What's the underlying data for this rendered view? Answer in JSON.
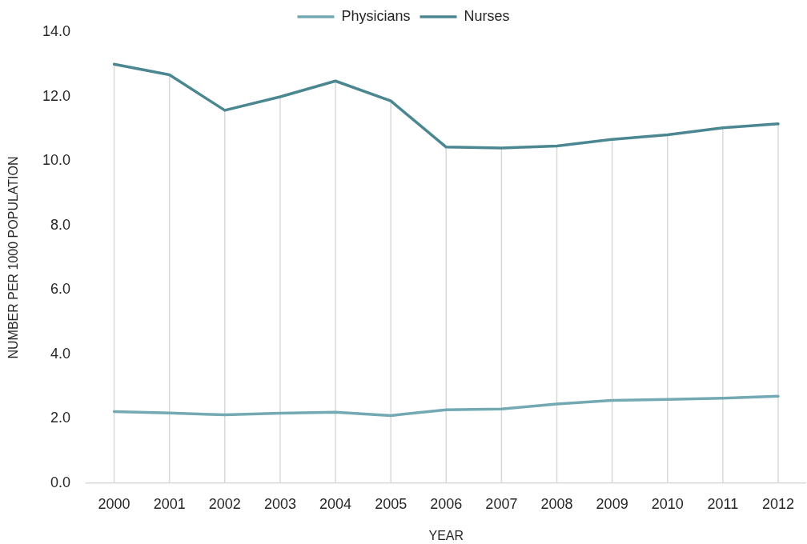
{
  "chart_data": {
    "type": "line",
    "xlabel": "YEAR",
    "ylabel": "NUMBER PER 1000 POPULATION",
    "categories": [
      "2000",
      "2001",
      "2002",
      "2003",
      "2004",
      "2005",
      "2006",
      "2007",
      "2008",
      "2009",
      "2010",
      "2011",
      "2012"
    ],
    "series": [
      {
        "name": "Physicians",
        "color": "#72a9b3",
        "values": [
          2.22,
          2.18,
          2.12,
          2.17,
          2.2,
          2.1,
          2.28,
          2.3,
          2.46,
          2.57,
          2.6,
          2.64,
          2.7
        ]
      },
      {
        "name": "Nurses",
        "color": "#4b8791",
        "values": [
          13.0,
          12.67,
          11.57,
          11.99,
          12.48,
          11.86,
          10.43,
          10.4,
          10.46,
          10.67,
          10.81,
          11.03,
          11.15
        ]
      }
    ],
    "ylim": [
      0,
      14
    ],
    "yticks": [
      {
        "value": 0,
        "label": "0.0"
      },
      {
        "value": 2,
        "label": "2.0"
      },
      {
        "value": 4,
        "label": "4.0"
      },
      {
        "value": 6,
        "label": "6.0"
      },
      {
        "value": 8,
        "label": "8.0"
      },
      {
        "value": 10,
        "label": "10.0"
      },
      {
        "value": 12,
        "label": "12.0"
      },
      {
        "value": 14,
        "label": "14.0"
      }
    ],
    "grid": "x",
    "legend": "top",
    "line_style": "solid"
  }
}
